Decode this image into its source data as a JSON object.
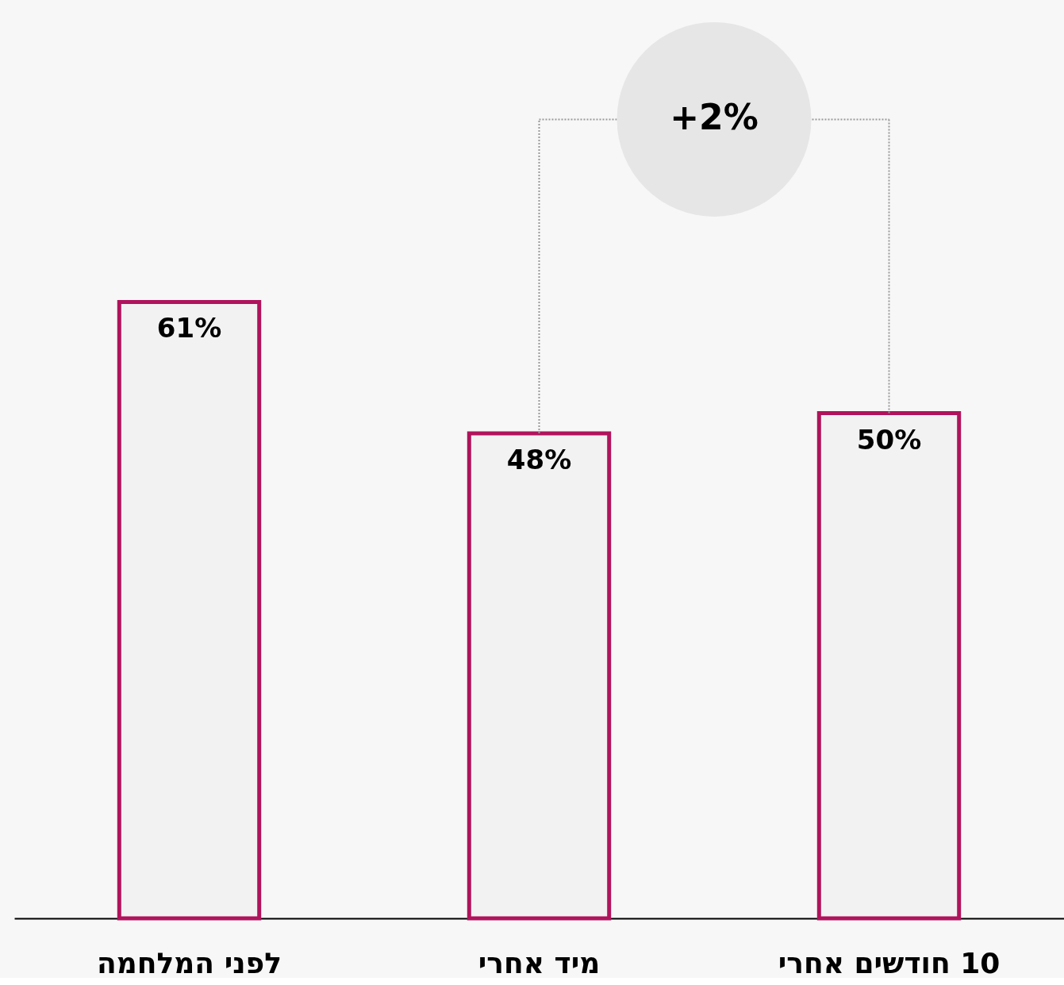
{
  "chart_data": {
    "type": "bar",
    "categories": [
      "לפני המלחמה",
      "מיד אחרי",
      "10 חודשים אחרי"
    ],
    "values": [
      61,
      48,
      50
    ],
    "color": "#b0135c",
    "value_labels": [
      "61%",
      "48%",
      "50%"
    ],
    "grid": false,
    "annotations": [
      "+2%"
    ]
  }
}
